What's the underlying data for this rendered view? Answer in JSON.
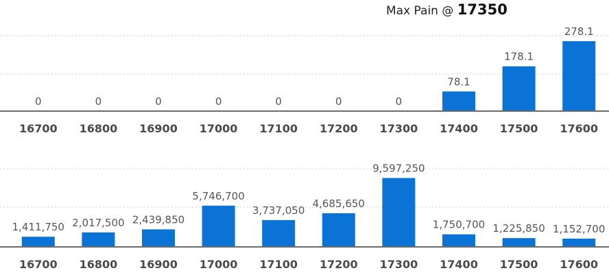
{
  "header": {
    "title_prefix": "Max Pain @",
    "title_value": "17350"
  },
  "chart_data": [
    {
      "type": "bar",
      "categories": [
        "16700",
        "16800",
        "16900",
        "17000",
        "17100",
        "17200",
        "17300",
        "17400",
        "17500",
        "17600"
      ],
      "values": [
        0,
        0,
        0,
        0,
        0,
        0,
        0,
        78.1,
        178.1,
        278.1
      ],
      "data_labels": [
        "0",
        "0",
        "0",
        "0",
        "0",
        "0",
        "0",
        "78.1",
        "178.1",
        "278.1"
      ],
      "ylim": [
        0,
        300
      ],
      "grid": true,
      "color": "#0b72d6"
    },
    {
      "type": "bar",
      "categories": [
        "16700",
        "16800",
        "16900",
        "17000",
        "17100",
        "17200",
        "17300",
        "17400",
        "17500",
        "17600"
      ],
      "values": [
        1411750,
        2017500,
        2439850,
        5746700,
        3737050,
        4685650,
        9597250,
        1750700,
        1225850,
        1152700
      ],
      "data_labels": [
        "1,411,750",
        "2,017,500",
        "2,439,850",
        "5,746,700",
        "3,737,050",
        "4,685,650",
        "9,597,250",
        "1,750,700",
        "1,225,850",
        "1,152,700"
      ],
      "ylim": [
        0,
        10800000
      ],
      "grid": true,
      "color": "#0b72d6"
    }
  ]
}
